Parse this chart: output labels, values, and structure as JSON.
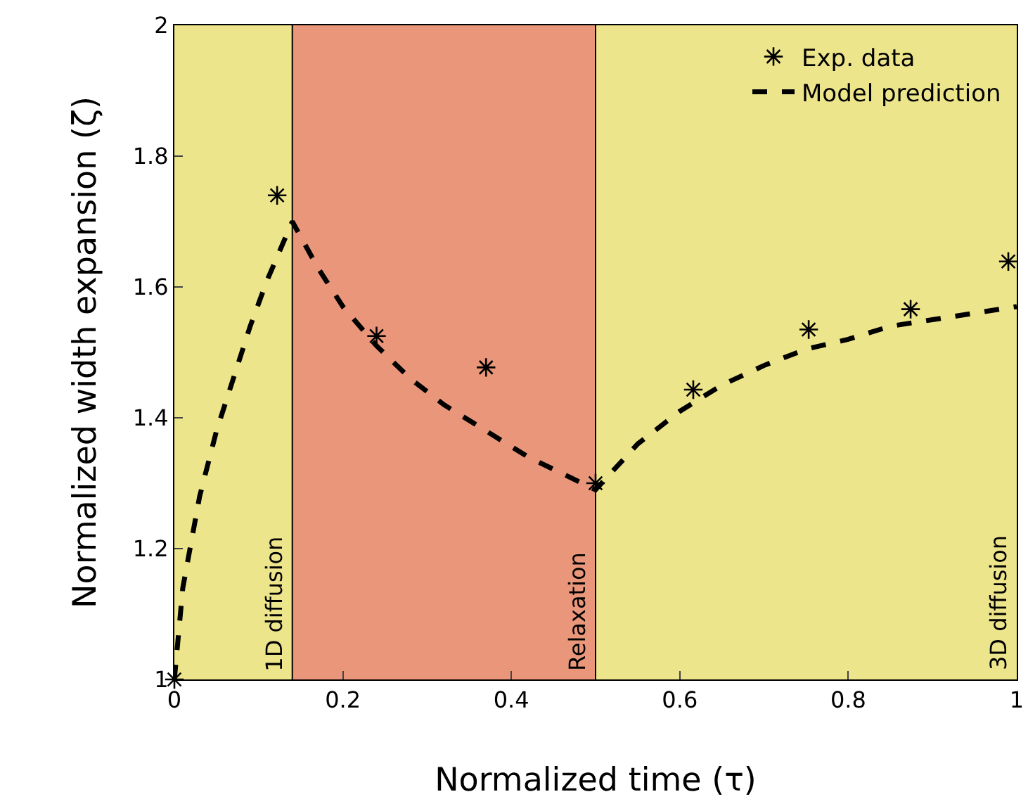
{
  "chart_data": {
    "type": "scatter",
    "xlabel": "Normalized time (τ)",
    "ylabel": "Normalized width expansion (ζ)",
    "xlim": [
      0,
      1
    ],
    "ylim": [
      1,
      2
    ],
    "xticks": [
      0,
      0.2,
      0.4,
      0.6,
      0.8,
      1
    ],
    "yticks": [
      1,
      1.2,
      1.4,
      1.6,
      1.8,
      2
    ],
    "grid": false,
    "legend": "top right",
    "line_style": "dashed",
    "series": [
      {
        "name": "Exp. data",
        "marker": "cross",
        "color": "#000000",
        "x": [
          0,
          0.122,
          0.24,
          0.37,
          0.5,
          0.616,
          0.753,
          0.874,
          0.99
        ],
        "values": [
          1,
          1.74,
          1.525,
          1.477,
          1.3,
          1.443,
          1.535,
          1.566,
          1.639
        ]
      },
      {
        "name": "Model prediction",
        "type": "line",
        "marker": "none",
        "color": "#000000",
        "x": [
          0,
          0.01,
          0.03,
          0.05,
          0.07,
          0.09,
          0.11,
          0.14,
          0.17,
          0.2,
          0.24,
          0.28,
          0.32,
          0.37,
          0.42,
          0.46,
          0.5,
          0.55,
          0.6,
          0.65,
          0.7,
          0.75,
          0.8,
          0.85,
          0.9,
          0.95,
          1
        ],
        "values": [
          1,
          1.14,
          1.28,
          1.38,
          1.46,
          1.54,
          1.61,
          1.7,
          1.63,
          1.57,
          1.51,
          1.46,
          1.42,
          1.38,
          1.34,
          1.315,
          1.29,
          1.36,
          1.41,
          1.45,
          1.48,
          1.505,
          1.52,
          1.54,
          1.55,
          1.56,
          1.57
        ]
      }
    ],
    "ref_lines": [
      {
        "axis": "x",
        "value": 0.14,
        "color": "#000000"
      },
      {
        "axis": "x",
        "value": 0.5,
        "color": "#000000"
      }
    ],
    "bands": [
      {
        "axis": "x",
        "from": 0,
        "to": 0.14,
        "label": "1D diffusion",
        "color": "#ede58b"
      },
      {
        "axis": "x",
        "from": 0.14,
        "to": 0.5,
        "label": "Relaxation",
        "color": "#e9967a"
      },
      {
        "axis": "x",
        "from": 0.5,
        "to": 1,
        "label": "3D diffusion",
        "color": "#ede58b"
      }
    ]
  }
}
